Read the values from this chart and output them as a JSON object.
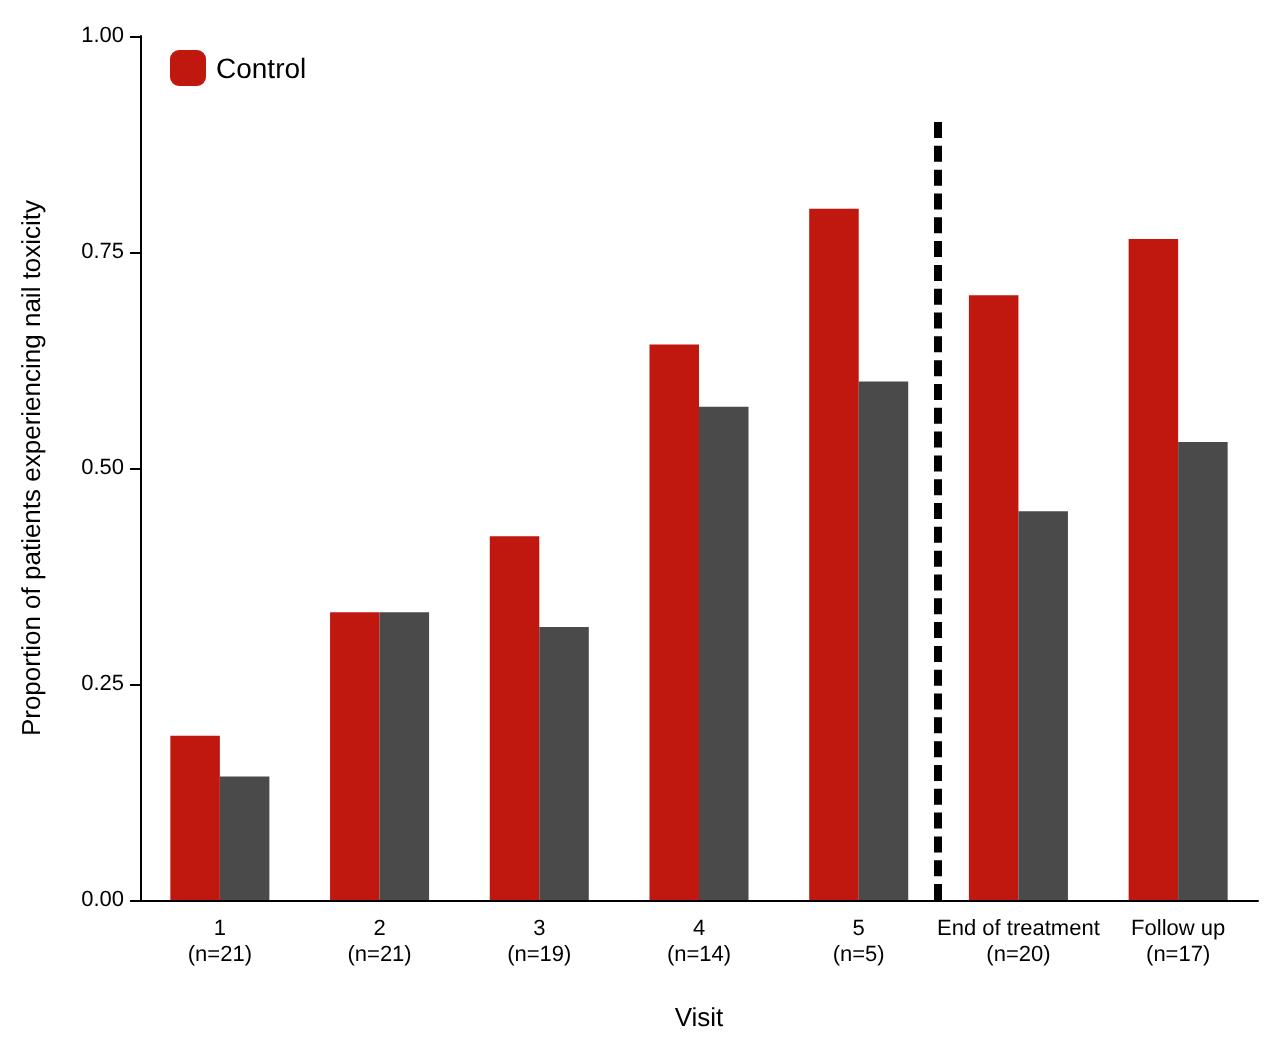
{
  "chart_data": {
    "type": "bar",
    "xlabel": "Visit",
    "ylabel": "Proportion of patients experiencing nail toxicity",
    "categories": [
      "1\n(n=21)",
      "2\n(n=21)",
      "3\n(n=19)",
      "4\n(n=14)",
      "5\n(n=5)",
      "End of treatment\n(n=20)",
      "Follow up\n(n=17)"
    ],
    "series": [
      {
        "name": "Control",
        "color": "#c0170e",
        "values": [
          0.19,
          0.333,
          0.421,
          0.643,
          0.8,
          0.7,
          0.765
        ]
      },
      {
        "color": "#4a4a4a",
        "values": [
          0.143,
          0.333,
          0.316,
          0.571,
          0.6,
          0.45,
          0.53
        ]
      }
    ],
    "ylim": [
      0,
      1
    ],
    "yticks": [
      {
        "value": 0,
        "label": "0.00"
      },
      {
        "value": 0.25,
        "label": "0.25"
      },
      {
        "value": 0.5,
        "label": "0.50"
      },
      {
        "value": 0.75,
        "label": "0.75"
      },
      {
        "value": 1,
        "label": "1.00"
      }
    ],
    "grid": false,
    "legend": "top left"
  }
}
